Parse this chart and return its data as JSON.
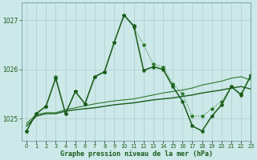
{
  "title": "Graphe pression niveau de la mer (hPa)",
  "bg_color": "#cce8e8",
  "grid_color": "#b0cccc",
  "line_color_dark": "#1a5c1a",
  "xlim": [
    -0.5,
    23
  ],
  "ylim": [
    1024.55,
    1027.35
  ],
  "yticks": [
    1025,
    1026,
    1027
  ],
  "xticks": [
    0,
    1,
    2,
    3,
    4,
    5,
    6,
    7,
    8,
    9,
    10,
    11,
    12,
    13,
    14,
    15,
    16,
    17,
    18,
    19,
    20,
    21,
    22,
    23
  ],
  "series": [
    {
      "x": [
        0,
        1,
        2,
        3,
        4,
        5,
        6,
        7,
        8,
        9,
        10,
        11,
        12,
        13,
        14,
        15,
        16,
        17,
        18,
        19,
        20,
        21,
        22,
        23
      ],
      "y": [
        1024.75,
        1025.1,
        1025.25,
        1025.85,
        1025.1,
        1025.55,
        1025.3,
        1025.85,
        1025.95,
        1026.55,
        1027.1,
        1026.85,
        1026.5,
        1026.1,
        1026.05,
        1025.7,
        1025.5,
        1025.05,
        1025.05,
        1025.2,
        1025.35,
        1025.65,
        1025.5,
        1025.85
      ],
      "style": "dotted",
      "marker": "*",
      "color": "#2d7a2d",
      "linewidth": 0.8,
      "markersize": 3
    },
    {
      "x": [
        0,
        1,
        2,
        3,
        4,
        5,
        6,
        7,
        8,
        9,
        10,
        11,
        12,
        13,
        14,
        15,
        16,
        17,
        18,
        19,
        20,
        21,
        22,
        23
      ],
      "y": [
        1024.85,
        1025.05,
        1025.1,
        1025.1,
        1025.15,
        1025.18,
        1025.2,
        1025.22,
        1025.25,
        1025.28,
        1025.3,
        1025.32,
        1025.35,
        1025.38,
        1025.4,
        1025.42,
        1025.45,
        1025.48,
        1025.52,
        1025.55,
        1025.58,
        1025.62,
        1025.65,
        1025.6
      ],
      "style": "solid",
      "marker": null,
      "color": "#1a5c1a",
      "linewidth": 1.0,
      "markersize": 0
    },
    {
      "x": [
        0,
        1,
        2,
        3,
        4,
        5,
        6,
        7,
        8,
        9,
        10,
        11,
        12,
        13,
        14,
        15,
        16,
        17,
        18,
        19,
        20,
        21,
        22,
        23
      ],
      "y": [
        1024.9,
        1025.08,
        1025.12,
        1025.12,
        1025.18,
        1025.22,
        1025.26,
        1025.3,
        1025.33,
        1025.36,
        1025.38,
        1025.4,
        1025.44,
        1025.48,
        1025.52,
        1025.55,
        1025.58,
        1025.62,
        1025.68,
        1025.72,
        1025.76,
        1025.82,
        1025.85,
        1025.78
      ],
      "style": "solid",
      "marker": null,
      "color": "#2d7a2d",
      "linewidth": 0.8,
      "markersize": 0
    },
    {
      "x": [
        0,
        1,
        2,
        3,
        4,
        5,
        6,
        7,
        8,
        9,
        10,
        11,
        12,
        13,
        14,
        15,
        16,
        17,
        18,
        19,
        20,
        21,
        22,
        23
      ],
      "y": [
        1024.75,
        1025.1,
        1025.25,
        1025.82,
        1025.1,
        1025.55,
        1025.3,
        1025.85,
        1025.95,
        1026.55,
        1027.1,
        1026.88,
        1025.98,
        1026.05,
        1026.0,
        1025.65,
        1025.35,
        1024.85,
        1024.75,
        1025.05,
        1025.28,
        1025.65,
        1025.48,
        1025.88
      ],
      "style": "solid",
      "marker": "*",
      "color": "#1a5c1a",
      "linewidth": 1.1,
      "markersize": 3
    }
  ]
}
